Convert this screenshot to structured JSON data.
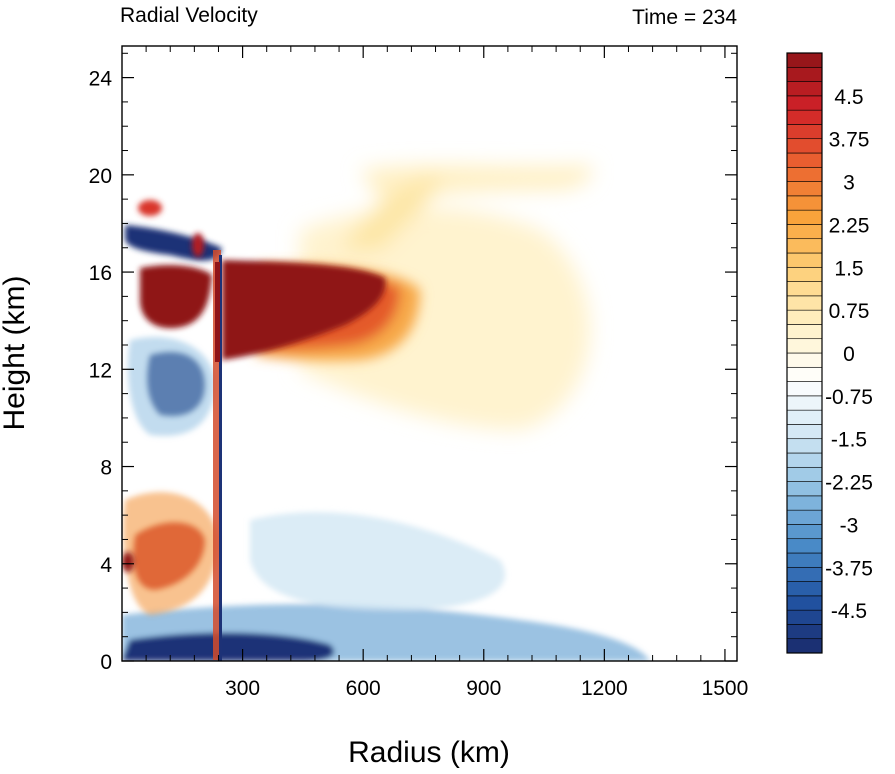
{
  "chart_data": {
    "type": "heatmap",
    "title_left": "Radial Velocity",
    "title_right": "Time = 234",
    "xlabel": "Radius (km)",
    "ylabel": "Height (km)",
    "xlim": [
      0,
      1530
    ],
    "ylim": [
      0,
      25.3
    ],
    "x_ticks": [
      300,
      600,
      900,
      1200,
      1500
    ],
    "y_ticks": [
      0,
      4,
      8,
      12,
      16,
      20,
      24
    ],
    "colorbar": {
      "min": -5.25,
      "max": 5.25,
      "step": 0.25,
      "tick_values": [
        4.5,
        3.75,
        3,
        2.25,
        1.5,
        0.75,
        0,
        -0.75,
        -1.5,
        -2.25,
        -3,
        -3.75,
        -4.5
      ],
      "tick_labels": [
        "4.5",
        "3.75",
        "3",
        "2.25",
        "1.5",
        "0.75",
        "0",
        "-0.75",
        "-1.5",
        "-2.25",
        "-3",
        "-3.75",
        "-4.5"
      ],
      "colors": [
        "#1a2a6c",
        "#2255a4",
        "#4a8cc8",
        "#8fc0e2",
        "#d2e7f4",
        "#ffffff",
        "#fff2c8",
        "#fdd07a",
        "#f9a23a",
        "#ea6030",
        "#cf2128",
        "#8f1418"
      ]
    },
    "features": [
      {
        "name": "outflow-core",
        "x": [
          240,
          610
        ],
        "y": [
          12.3,
          16.1
        ],
        "value": 5.25
      },
      {
        "name": "outflow-layer",
        "x": [
          240,
          1150
        ],
        "y": [
          10.5,
          17.5
        ],
        "value": 1.5
      },
      {
        "name": "upper-outflow",
        "x": [
          300,
          1150
        ],
        "y": [
          17.5,
          20.8
        ],
        "value": 0.75
      },
      {
        "name": "upper-inflow",
        "x": [
          20,
          240
        ],
        "y": [
          16.3,
          18.5
        ],
        "value": -5.0
      },
      {
        "name": "mid-inflow",
        "x": [
          110,
          200
        ],
        "y": [
          10.2,
          12.5
        ],
        "value": -5.0
      },
      {
        "name": "low-outflow",
        "x": [
          40,
          200
        ],
        "y": [
          3.3,
          7.4
        ],
        "value": 4.5
      },
      {
        "name": "boundary-inflow",
        "x": [
          0,
          1100
        ],
        "y": [
          0,
          2.5
        ],
        "value": -2.5
      },
      {
        "name": "eyewall",
        "x": [
          235,
          255
        ],
        "y": [
          0,
          16.5
        ],
        "value": 3.5
      }
    ]
  }
}
